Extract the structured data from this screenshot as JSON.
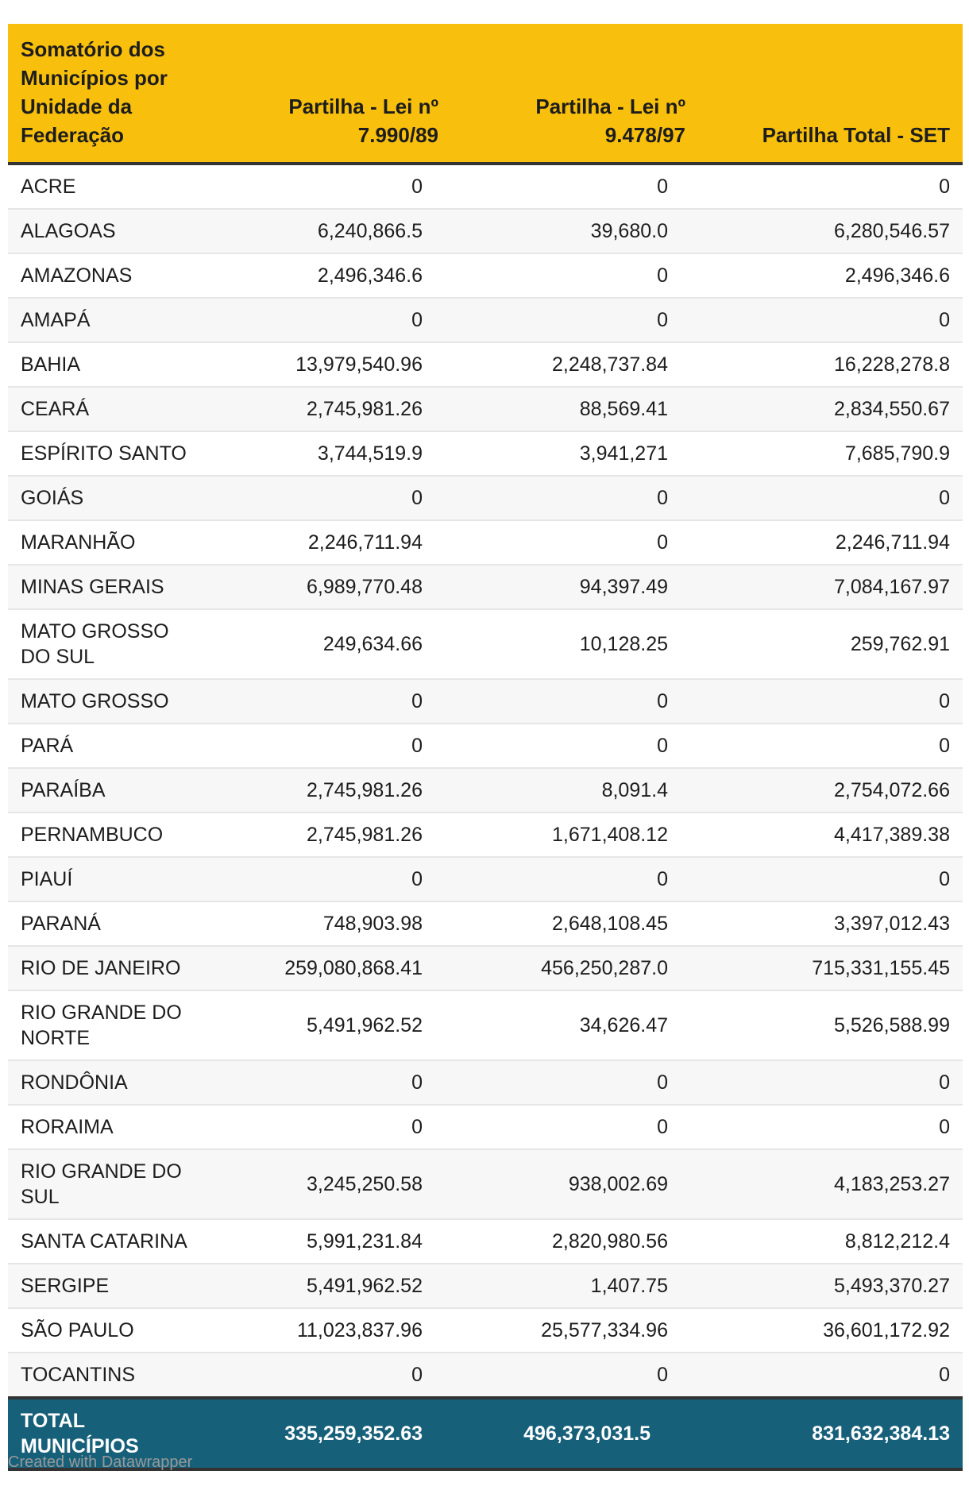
{
  "headers": [
    "Somatório dos Municípios por Unidade da Federação",
    "Partilha - Lei nº 7.990/89",
    "Partilha - Lei nº 9.478/97",
    "Partilha Total - SET"
  ],
  "rows": [
    [
      "ACRE",
      "0",
      "0",
      "0"
    ],
    [
      "ALAGOAS",
      "6,240,866.5",
      "39,680.0",
      "6,280,546.57"
    ],
    [
      "AMAZONAS",
      "2,496,346.6",
      "0",
      "2,496,346.6"
    ],
    [
      "AMAPÁ",
      "0",
      "0",
      "0"
    ],
    [
      "BAHIA",
      "13,979,540.96",
      "2,248,737.84",
      "16,228,278.8"
    ],
    [
      "CEARÁ",
      "2,745,981.26",
      "88,569.41",
      "2,834,550.67"
    ],
    [
      "ESPÍRITO SANTO",
      "3,744,519.9",
      "3,941,271",
      "7,685,790.9"
    ],
    [
      "GOIÁS",
      "0",
      "0",
      "0"
    ],
    [
      "MARANHÃO",
      "2,246,711.94",
      "0",
      "2,246,711.94"
    ],
    [
      "MINAS GERAIS",
      "6,989,770.48",
      "94,397.49",
      "7,084,167.97"
    ],
    [
      "MATO GROSSO DO SUL",
      "249,634.66",
      "10,128.25",
      "259,762.91"
    ],
    [
      "MATO GROSSO",
      "0",
      "0",
      "0"
    ],
    [
      "PARÁ",
      "0",
      "0",
      "0"
    ],
    [
      "PARAÍBA",
      "2,745,981.26",
      "8,091.4",
      "2,754,072.66"
    ],
    [
      "PERNAMBUCO",
      "2,745,981.26",
      "1,671,408.12",
      "4,417,389.38"
    ],
    [
      "PIAUÍ",
      "0",
      "0",
      "0"
    ],
    [
      "PARANÁ",
      "748,903.98",
      "2,648,108.45",
      "3,397,012.43"
    ],
    [
      "RIO DE JANEIRO",
      "259,080,868.41",
      "456,250,287.0",
      "715,331,155.45"
    ],
    [
      "RIO GRANDE DO NORTE",
      "5,491,962.52",
      "34,626.47",
      "5,526,588.99"
    ],
    [
      "RONDÔNIA",
      "0",
      "0",
      "0"
    ],
    [
      "RORAIMA",
      "0",
      "0",
      "0"
    ],
    [
      "RIO GRANDE DO SUL",
      "3,245,250.58",
      "938,002.69",
      "4,183,253.27"
    ],
    [
      "SANTA CATARINA",
      "5,991,231.84",
      "2,820,980.56",
      "8,812,212.4"
    ],
    [
      "SERGIPE",
      "5,491,962.52",
      "1,407.75",
      "5,493,370.27"
    ],
    [
      "SÃO PAULO",
      "11,023,837.96",
      "25,577,334.96",
      "36,601,172.92"
    ],
    [
      "TOCANTINS",
      "0",
      "0",
      "0"
    ]
  ],
  "total": [
    "TOTAL MUNICÍPIOS",
    "335,259,352.63",
    "496,373,031.5",
    "831,632,384.13"
  ],
  "footer": "Created with Datawrapper",
  "colors": {
    "header": "#f8bf0d",
    "total": "#17607a"
  }
}
